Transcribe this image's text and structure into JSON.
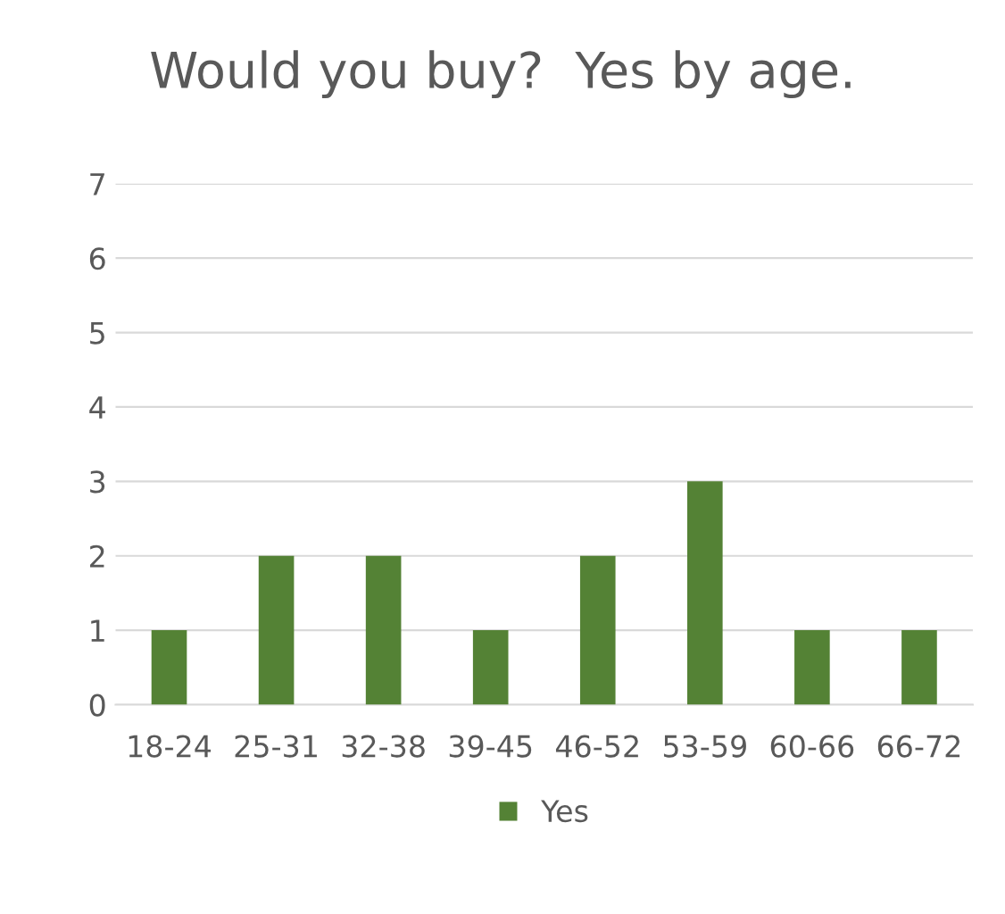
{
  "chart_data": {
    "type": "bar",
    "title": "Would you buy?  Yes by age.",
    "categories": [
      "18-24",
      "25-31",
      "32-38",
      "39-45",
      "46-52",
      "53-59",
      "60-66",
      "66-72"
    ],
    "series": [
      {
        "name": "Yes",
        "color": "#548235",
        "values": [
          1,
          2,
          2,
          1,
          2,
          3,
          1,
          1
        ]
      }
    ],
    "ylim": [
      0,
      7
    ],
    "yticks": [
      0,
      1,
      2,
      3,
      4,
      5,
      6,
      7
    ],
    "grid": "y",
    "legend": "bottom"
  }
}
